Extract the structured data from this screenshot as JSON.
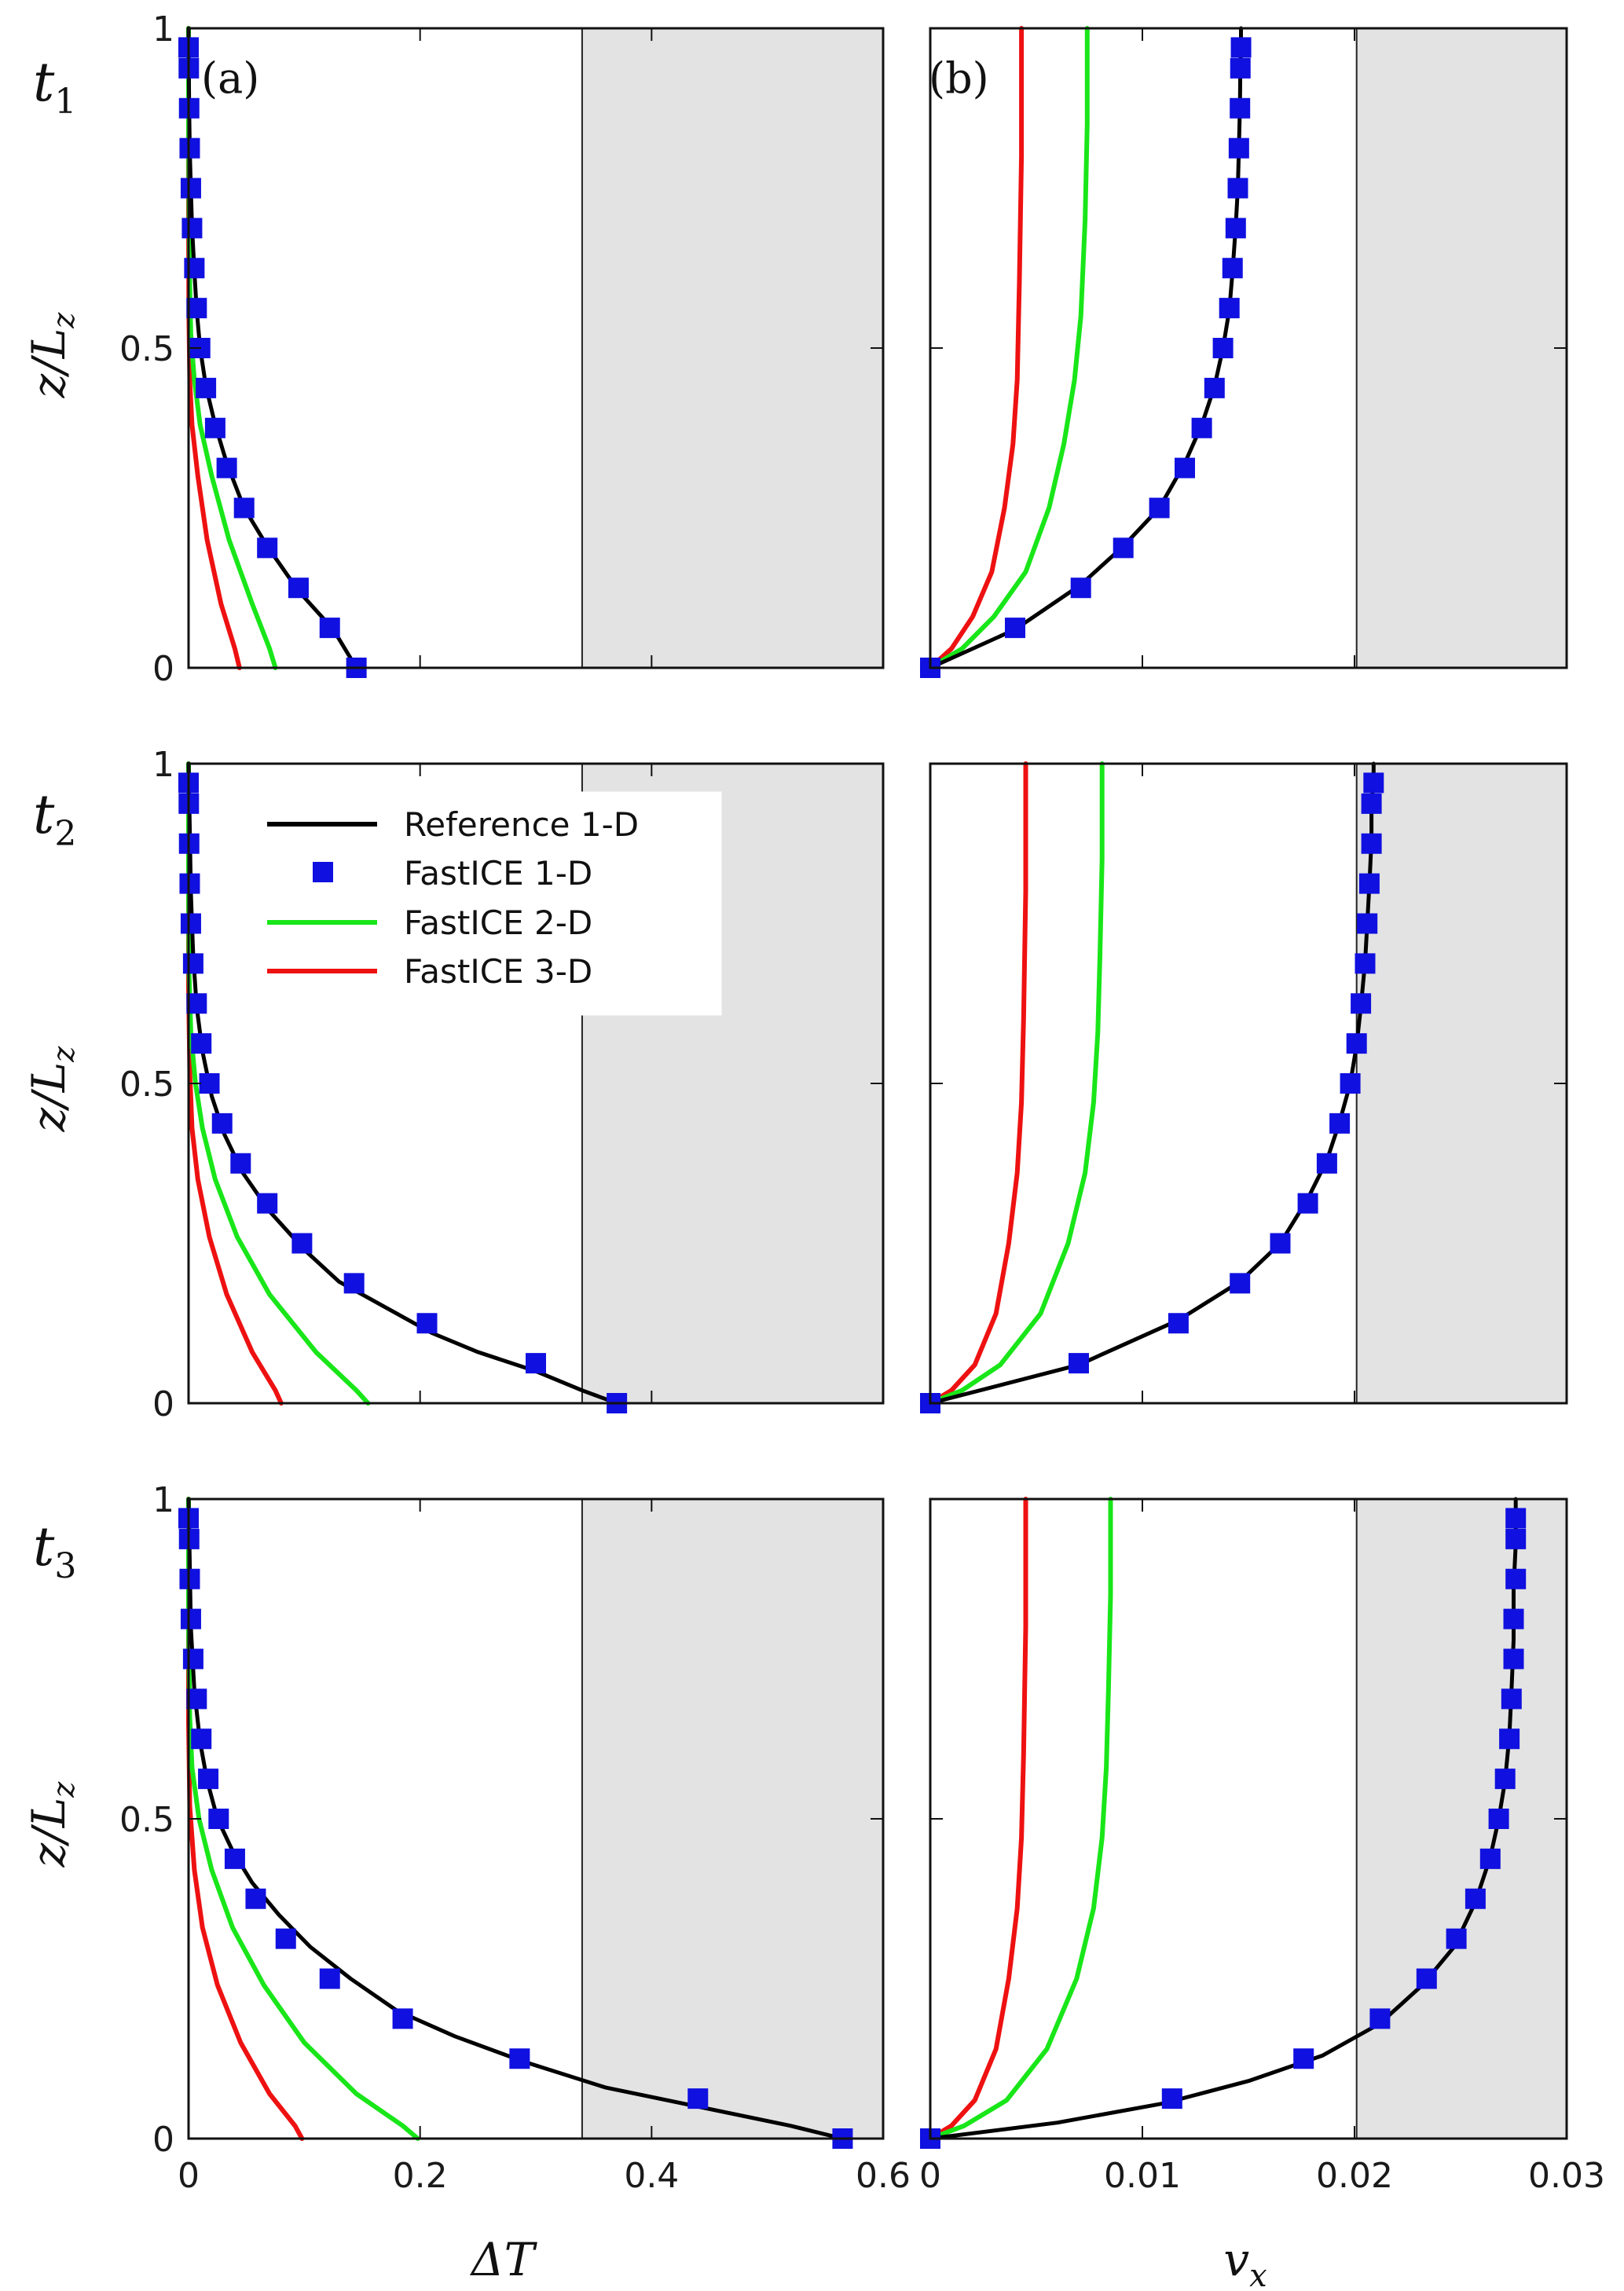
{
  "figure": {
    "row_labels": [
      {
        "main": "t",
        "sub": "1"
      },
      {
        "main": "t",
        "sub": "2"
      },
      {
        "main": "t",
        "sub": "3"
      }
    ],
    "panel_labels": [
      "(a)",
      "(b)"
    ],
    "ylabel": {
      "main": "z/L",
      "sub": "z"
    },
    "xlabel_left": "ΔT",
    "xlabel_right": {
      "main": "v",
      "sub": "x"
    }
  },
  "legend": [
    {
      "label": "Reference 1-D",
      "color": "#000000",
      "kind": "line"
    },
    {
      "label": "FastICE 1-D",
      "color": "#1010e0",
      "kind": "marker"
    },
    {
      "label": "FastICE 2-D",
      "color": "#19e619",
      "kind": "line"
    },
    {
      "label": "FastICE 3-D",
      "color": "#ee1111",
      "kind": "line"
    }
  ],
  "colors": {
    "reference": "#000000",
    "fastice_1d": "#1010e0",
    "fastice_2d": "#19e619",
    "fastice_3d": "#ee1111",
    "shade": "#e3e3e3"
  },
  "chart_data": [
    {
      "type": "line",
      "panel": "(a)",
      "row": "t1",
      "xlim": [
        0,
        0.6
      ],
      "ylim": [
        0,
        1
      ],
      "shade_from_x": 0.34,
      "xticks": [
        "0",
        "0.2",
        "0.4",
        "0.6"
      ],
      "yticks": [
        "0",
        "0.5",
        "1"
      ],
      "series": [
        {
          "name": "Reference 1-D",
          "x": [
            0.145,
            0.125,
            0.095,
            0.068,
            0.048,
            0.033,
            0.023,
            0.015,
            0.01,
            0.007,
            0.005,
            0.003,
            0.002,
            0.001,
            0.0005,
            0.0002,
            0,
            0
          ],
          "y": [
            0,
            0.06,
            0.12,
            0.19,
            0.25,
            0.32,
            0.38,
            0.44,
            0.5,
            0.56,
            0.62,
            0.69,
            0.75,
            0.81,
            0.88,
            0.94,
            0.97,
            1
          ]
        },
        {
          "name": "FastICE 1-D",
          "x": [
            0.145,
            0.122,
            0.095,
            0.068,
            0.048,
            0.033,
            0.023,
            0.015,
            0.01,
            0.007,
            0.005,
            0.003,
            0.002,
            0.001,
            0.0005,
            0.0002,
            0
          ],
          "y": [
            0,
            0.0625,
            0.125,
            0.1875,
            0.25,
            0.3125,
            0.375,
            0.4375,
            0.5,
            0.5625,
            0.625,
            0.6875,
            0.75,
            0.8125,
            0.875,
            0.9375,
            0.97
          ]
        },
        {
          "name": "FastICE 2-D",
          "x": [
            0.075,
            0.07,
            0.055,
            0.035,
            0.02,
            0.01,
            0.005,
            0.002,
            0.001,
            0.0005,
            0,
            0
          ],
          "y": [
            0,
            0.03,
            0.1,
            0.2,
            0.3,
            0.38,
            0.45,
            0.52,
            0.6,
            0.7,
            0.85,
            1
          ]
        },
        {
          "name": "FastICE 3-D",
          "x": [
            0.044,
            0.04,
            0.028,
            0.016,
            0.008,
            0.003,
            0.001,
            0.0003,
            0,
            0
          ],
          "y": [
            0,
            0.03,
            0.1,
            0.2,
            0.3,
            0.38,
            0.45,
            0.55,
            0.7,
            1
          ]
        }
      ]
    },
    {
      "type": "line",
      "panel": "(b)",
      "row": "t1",
      "xlim": [
        0,
        0.03
      ],
      "ylim": [
        0,
        1
      ],
      "shade_from_x": 0.0201,
      "xticks": [
        "0",
        "0.01",
        "0.02",
        "0.03"
      ],
      "yticks": [
        "0",
        "0.5",
        "1"
      ],
      "series": [
        {
          "name": "Reference 1-D",
          "x": [
            0,
            0.004,
            0.0071,
            0.0091,
            0.0108,
            0.012,
            0.0128,
            0.0134,
            0.0138,
            0.0141,
            0.01425,
            0.0144,
            0.0145,
            0.01455,
            0.0146,
            0.01462,
            0.01465,
            0.01465
          ],
          "y": [
            0,
            0.06,
            0.13,
            0.19,
            0.25,
            0.32,
            0.38,
            0.44,
            0.5,
            0.56,
            0.62,
            0.69,
            0.75,
            0.81,
            0.88,
            0.94,
            0.97,
            1
          ]
        },
        {
          "name": "FastICE 1-D",
          "x": [
            0,
            0.004,
            0.0071,
            0.0091,
            0.0108,
            0.012,
            0.0128,
            0.0134,
            0.0138,
            0.0141,
            0.01425,
            0.0144,
            0.0145,
            0.01455,
            0.0146,
            0.01462,
            0.01465
          ],
          "y": [
            0,
            0.0625,
            0.125,
            0.1875,
            0.25,
            0.3125,
            0.375,
            0.4375,
            0.5,
            0.5625,
            0.625,
            0.6875,
            0.75,
            0.8125,
            0.875,
            0.9375,
            0.97
          ]
        },
        {
          "name": "FastICE 2-D",
          "x": [
            0,
            0.0015,
            0.003,
            0.0045,
            0.0056,
            0.0063,
            0.0068,
            0.0071,
            0.0073,
            0.0074,
            0.0074
          ],
          "y": [
            0,
            0.03,
            0.08,
            0.15,
            0.25,
            0.35,
            0.45,
            0.55,
            0.7,
            0.85,
            1
          ]
        },
        {
          "name": "FastICE 3-D",
          "x": [
            0,
            0.001,
            0.002,
            0.0029,
            0.0035,
            0.0039,
            0.0041,
            0.0042,
            0.0043,
            0.0043
          ],
          "y": [
            0,
            0.03,
            0.08,
            0.15,
            0.25,
            0.35,
            0.45,
            0.6,
            0.8,
            1
          ]
        }
      ]
    },
    {
      "type": "line",
      "panel": "(a)",
      "row": "t2",
      "xlim": [
        0,
        0.6
      ],
      "ylim": [
        0,
        1
      ],
      "shade_from_x": 0.34,
      "xticks": [
        "0",
        "0.2",
        "0.4",
        "0.6"
      ],
      "yticks": [
        "0",
        "0.5",
        "1"
      ],
      "series": [
        {
          "name": "Reference 1-D",
          "x": [
            0.37,
            0.34,
            0.3,
            0.25,
            0.21,
            0.17,
            0.13,
            0.1,
            0.07,
            0.047,
            0.031,
            0.02,
            0.012,
            0.007,
            0.004,
            0.002,
            0.001,
            0
          ],
          "y": [
            0,
            0.02,
            0.05,
            0.08,
            0.11,
            0.15,
            0.19,
            0.24,
            0.3,
            0.36,
            0.42,
            0.48,
            0.55,
            0.62,
            0.7,
            0.8,
            0.9,
            1
          ]
        },
        {
          "name": "FastICE 1-D",
          "x": [
            0.37,
            0.3,
            0.206,
            0.143,
            0.098,
            0.068,
            0.045,
            0.029,
            0.018,
            0.011,
            0.007,
            0.004,
            0.002,
            0.001,
            0.0005,
            0.0002,
            0
          ],
          "y": [
            0,
            0.0625,
            0.125,
            0.1875,
            0.25,
            0.3125,
            0.375,
            0.4375,
            0.5,
            0.5625,
            0.625,
            0.6875,
            0.75,
            0.8125,
            0.875,
            0.9375,
            0.97
          ]
        },
        {
          "name": "FastICE 2-D",
          "x": [
            0.155,
            0.145,
            0.11,
            0.07,
            0.042,
            0.023,
            0.012,
            0.006,
            0.002,
            0.0005,
            0,
            0
          ],
          "y": [
            0,
            0.02,
            0.08,
            0.17,
            0.26,
            0.35,
            0.43,
            0.5,
            0.58,
            0.67,
            0.8,
            1
          ]
        },
        {
          "name": "FastICE 3-D",
          "x": [
            0.08,
            0.075,
            0.055,
            0.033,
            0.018,
            0.008,
            0.003,
            0.001,
            0,
            0
          ],
          "y": [
            0,
            0.02,
            0.08,
            0.17,
            0.26,
            0.35,
            0.43,
            0.52,
            0.65,
            1
          ]
        }
      ]
    },
    {
      "type": "line",
      "panel": "(b)",
      "row": "t2",
      "xlim": [
        0,
        0.03
      ],
      "ylim": [
        0,
        1
      ],
      "shade_from_x": 0.0201,
      "xticks": [
        "0",
        "0.01",
        "0.02",
        "0.03"
      ],
      "yticks": [
        "0",
        "0.5",
        "1"
      ],
      "series": [
        {
          "name": "Reference 1-D",
          "x": [
            0,
            0.007,
            0.0117,
            0.0146,
            0.0165,
            0.0178,
            0.0187,
            0.0193,
            0.0198,
            0.0201,
            0.0203,
            0.0205,
            0.0206,
            0.0207,
            0.0208,
            0.0208,
            0.0209,
            0.0209
          ],
          "y": [
            0,
            0.06,
            0.13,
            0.19,
            0.25,
            0.32,
            0.38,
            0.44,
            0.5,
            0.56,
            0.62,
            0.69,
            0.75,
            0.81,
            0.88,
            0.94,
            0.97,
            1
          ]
        },
        {
          "name": "FastICE 1-D",
          "x": [
            0,
            0.007,
            0.0117,
            0.0146,
            0.0165,
            0.0178,
            0.0187,
            0.0193,
            0.0198,
            0.0201,
            0.0203,
            0.0205,
            0.0206,
            0.0207,
            0.0208,
            0.0208,
            0.0209
          ],
          "y": [
            0,
            0.0625,
            0.125,
            0.1875,
            0.25,
            0.3125,
            0.375,
            0.4375,
            0.5,
            0.5625,
            0.625,
            0.6875,
            0.75,
            0.8125,
            0.875,
            0.9375,
            0.97
          ]
        },
        {
          "name": "FastICE 2-D",
          "x": [
            0,
            0.0015,
            0.0033,
            0.0052,
            0.0065,
            0.0073,
            0.0077,
            0.0079,
            0.008,
            0.0081,
            0.0081
          ],
          "y": [
            0,
            0.02,
            0.06,
            0.14,
            0.25,
            0.36,
            0.47,
            0.58,
            0.7,
            0.85,
            1
          ]
        },
        {
          "name": "FastICE 3-D",
          "x": [
            0,
            0.001,
            0.0021,
            0.0031,
            0.0037,
            0.0041,
            0.0043,
            0.0044,
            0.0045,
            0.0045
          ],
          "y": [
            0,
            0.02,
            0.06,
            0.14,
            0.25,
            0.36,
            0.47,
            0.6,
            0.8,
            1
          ]
        }
      ]
    },
    {
      "type": "line",
      "panel": "(a)",
      "row": "t3",
      "xlim": [
        0,
        0.6
      ],
      "ylim": [
        0,
        1
      ],
      "shade_from_x": 0.34,
      "xticks": [
        "0",
        "0.2",
        "0.4",
        "0.6"
      ],
      "yticks": [
        "0",
        "0.5",
        "1"
      ],
      "series": [
        {
          "name": "Reference 1-D",
          "x": [
            0.565,
            0.52,
            0.44,
            0.36,
            0.29,
            0.23,
            0.18,
            0.14,
            0.105,
            0.078,
            0.055,
            0.038,
            0.025,
            0.016,
            0.01,
            0.005,
            0.002,
            0.001,
            0
          ],
          "y": [
            0,
            0.02,
            0.05,
            0.08,
            0.12,
            0.16,
            0.2,
            0.25,
            0.3,
            0.35,
            0.4,
            0.45,
            0.5,
            0.56,
            0.62,
            0.7,
            0.8,
            0.9,
            1
          ]
        },
        {
          "name": "FastICE 1-D",
          "x": [
            0.565,
            0.44,
            0.286,
            0.185,
            0.122,
            0.084,
            0.058,
            0.04,
            0.026,
            0.017,
            0.011,
            0.007,
            0.004,
            0.002,
            0.001,
            0.0005,
            0
          ],
          "y": [
            0,
            0.0625,
            0.125,
            0.1875,
            0.25,
            0.3125,
            0.375,
            0.4375,
            0.5,
            0.5625,
            0.625,
            0.6875,
            0.75,
            0.8125,
            0.875,
            0.9375,
            0.97
          ]
        },
        {
          "name": "FastICE 2-D",
          "x": [
            0.198,
            0.185,
            0.145,
            0.1,
            0.065,
            0.038,
            0.02,
            0.009,
            0.003,
            0.001,
            0,
            0
          ],
          "y": [
            0,
            0.02,
            0.07,
            0.15,
            0.24,
            0.33,
            0.42,
            0.5,
            0.58,
            0.66,
            0.8,
            1
          ]
        },
        {
          "name": "FastICE 3-D",
          "x": [
            0.098,
            0.092,
            0.07,
            0.045,
            0.025,
            0.012,
            0.005,
            0.001,
            0,
            0
          ],
          "y": [
            0,
            0.02,
            0.07,
            0.15,
            0.24,
            0.33,
            0.42,
            0.52,
            0.65,
            1
          ]
        }
      ]
    },
    {
      "type": "line",
      "panel": "(b)",
      "row": "t3",
      "xlim": [
        0,
        0.03
      ],
      "ylim": [
        0,
        1
      ],
      "shade_from_x": 0.0201,
      "xticks": [
        "0",
        "0.01",
        "0.02",
        "0.03"
      ],
      "yticks": [
        "0",
        "0.5",
        "1"
      ],
      "series": [
        {
          "name": "Reference 1-D",
          "x": [
            0,
            0.006,
            0.011,
            0.015,
            0.0185,
            0.0212,
            0.0232,
            0.0247,
            0.0257,
            0.0264,
            0.0268,
            0.0271,
            0.0273,
            0.0274,
            0.0275,
            0.0275,
            0.0276,
            0.0276
          ],
          "y": [
            0,
            0.025,
            0.055,
            0.09,
            0.13,
            0.18,
            0.24,
            0.3,
            0.37,
            0.44,
            0.5,
            0.56,
            0.63,
            0.7,
            0.78,
            0.86,
            0.93,
            1
          ]
        },
        {
          "name": "FastICE 1-D",
          "x": [
            0,
            0.0114,
            0.0176,
            0.0212,
            0.0234,
            0.0248,
            0.0257,
            0.0264,
            0.0268,
            0.0271,
            0.0273,
            0.0274,
            0.0275,
            0.0275,
            0.0276,
            0.0276,
            0.0276
          ],
          "y": [
            0,
            0.0625,
            0.125,
            0.1875,
            0.25,
            0.3125,
            0.375,
            0.4375,
            0.5,
            0.5625,
            0.625,
            0.6875,
            0.75,
            0.8125,
            0.875,
            0.9375,
            0.97
          ]
        },
        {
          "name": "FastICE 2-D",
          "x": [
            0,
            0.0016,
            0.0036,
            0.0055,
            0.0069,
            0.0077,
            0.0081,
            0.0083,
            0.0084,
            0.0085,
            0.0085
          ],
          "y": [
            0,
            0.02,
            0.06,
            0.14,
            0.25,
            0.36,
            0.47,
            0.58,
            0.7,
            0.85,
            1
          ]
        },
        {
          "name": "FastICE 3-D",
          "x": [
            0,
            0.001,
            0.0021,
            0.0031,
            0.0037,
            0.0041,
            0.0043,
            0.0044,
            0.0045,
            0.0045
          ],
          "y": [
            0,
            0.02,
            0.06,
            0.14,
            0.25,
            0.36,
            0.47,
            0.6,
            0.8,
            1
          ]
        }
      ]
    }
  ]
}
